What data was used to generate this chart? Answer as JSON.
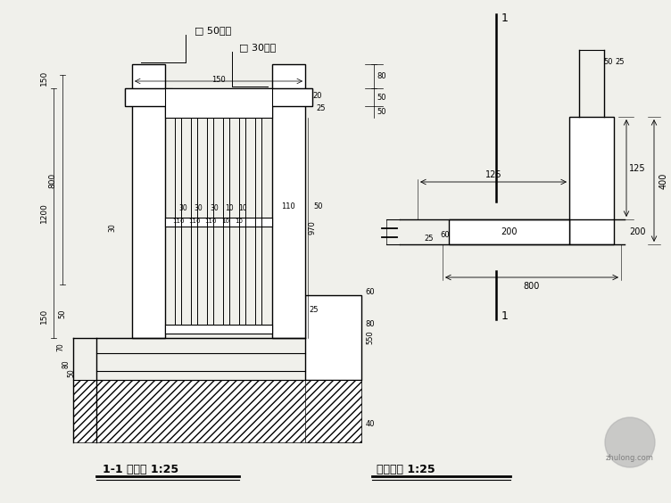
{
  "bg_color": "#f0f0eb",
  "lc": "black",
  "title1": "1-1 剖面图 1:25",
  "title2": "露台栏杆 1:25",
  "label_50": "□ 50钢管",
  "label_30": "□ 30钢管"
}
